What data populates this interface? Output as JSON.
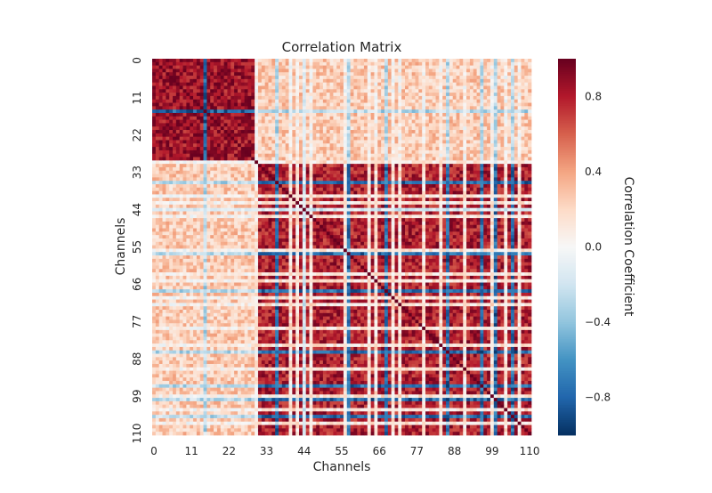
{
  "chart_data": {
    "type": "heatmap",
    "title": "Correlation Matrix",
    "xlabel": "Channels",
    "ylabel": "Channels",
    "size": 111,
    "x_ticks": [
      0,
      11,
      22,
      33,
      44,
      55,
      66,
      77,
      88,
      99,
      110
    ],
    "y_ticks": [
      0,
      11,
      22,
      33,
      44,
      55,
      66,
      77,
      88,
      99,
      110
    ],
    "x_tick_labels": [
      "0",
      "11",
      "22",
      "33",
      "44",
      "55",
      "66",
      "77",
      "88",
      "99",
      "110"
    ],
    "y_tick_labels": [
      "0",
      "11",
      "22",
      "33",
      "44",
      "55",
      "66",
      "77",
      "88",
      "99",
      "110"
    ],
    "vmin": -1.0,
    "vmax": 1.0,
    "colormap": "RdBu_r",
    "colormap_stops": [
      "#053061",
      "#2166ac",
      "#4393c3",
      "#92c5de",
      "#d1e5f0",
      "#f7f7f7",
      "#fddbc7",
      "#f4a582",
      "#d6604d",
      "#b2182b",
      "#67001f"
    ],
    "diagonal_value": 1.0,
    "blocks": [
      {
        "channels": [
          0,
          29
        ],
        "within": 0.85,
        "pattern_note": ""
      },
      {
        "channels": [
          30,
          110
        ],
        "within": 0.8
      }
    ],
    "between_blocks_value": 0.25,
    "low_correlation_channels": [
      30,
      40,
      42,
      44,
      46,
      56,
      63,
      65,
      70,
      72,
      79,
      84,
      91,
      99,
      103,
      107
    ],
    "negative_channels": [
      15,
      36,
      44,
      57,
      68,
      86,
      96,
      100,
      105
    ],
    "colorbar": {
      "label": "Correlation Coefficient",
      "ticks": [
        0.8,
        0.4,
        0.0,
        -0.4,
        -0.8
      ],
      "tick_labels": [
        "0.8",
        "0.4",
        "0.0",
        "−0.4",
        "−0.8"
      ]
    }
  }
}
